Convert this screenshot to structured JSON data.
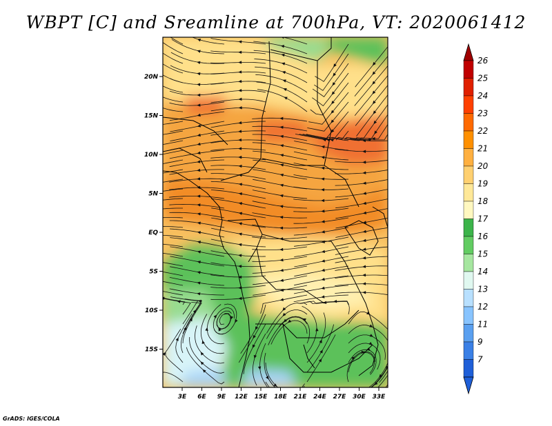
{
  "title": "WBPT [C] and Sreamline at 700hPa, VT: 2020061412",
  "credit": "GrADS: IGES/COLA",
  "axes": {
    "lon_ticks": [
      "3E",
      "6E",
      "9E",
      "12E",
      "15E",
      "18E",
      "21E",
      "24E",
      "27E",
      "30E",
      "33E"
    ],
    "lat_ticks": [
      "20N",
      "15N",
      "10N",
      "5N",
      "EQ",
      "5S",
      "10S",
      "15S"
    ]
  },
  "colorbar": {
    "labels": [
      "26",
      "25",
      "24",
      "23",
      "22",
      "21",
      "20",
      "19",
      "18",
      "17",
      "16",
      "15",
      "14",
      "13",
      "12",
      "11",
      "9",
      "7"
    ],
    "colors": [
      "#c00000",
      "#e02000",
      "#ff4000",
      "#ff6a00",
      "#ff9000",
      "#ffb040",
      "#ffd070",
      "#ffe898",
      "#fff8c0",
      "#3cb44a",
      "#62cc62",
      "#a6e6a0",
      "#e0f8f0",
      "#b8e0ff",
      "#88c4ff",
      "#5aa0f0",
      "#3a80e6",
      "#1f5fd8"
    ],
    "top_arrow_color": "#a00000",
    "bottom_arrow_color": "#1f5fd8"
  },
  "field_colors": {
    "orange_dark": "#f28c28",
    "orange": "#f5a540",
    "orange_light": "#f8c060",
    "yellow": "#ffe08a",
    "yellow_light": "#fff0b0",
    "green": "#5cc15a",
    "green_light": "#98dc90",
    "cyan_light": "#d8f4f8",
    "blue_light": "#a8d4f8",
    "red_orange": "#f07030"
  }
}
